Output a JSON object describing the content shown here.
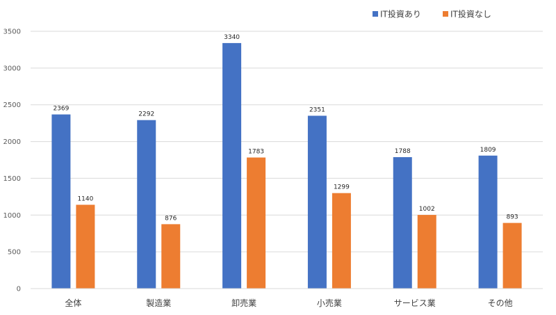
{
  "chart_data": {
    "type": "bar",
    "categories": [
      "全体",
      "製造業",
      "卸売業",
      "小売業",
      "サービス業",
      "その他"
    ],
    "series": [
      {
        "name": "IT投資あり",
        "values": [
          2369,
          2292,
          3340,
          2351,
          1788,
          1809
        ],
        "color": "#4472C4"
      },
      {
        "name": "IT投資なし",
        "values": [
          1140,
          876,
          1783,
          1299,
          1002,
          893
        ],
        "color": "#ED7D31"
      }
    ],
    "ylim": [
      0,
      3500
    ],
    "yticks": [
      0,
      500,
      1000,
      1500,
      2000,
      2500,
      3000,
      3500
    ],
    "grid": true,
    "legend_position": "top-right",
    "data_labels": true
  }
}
